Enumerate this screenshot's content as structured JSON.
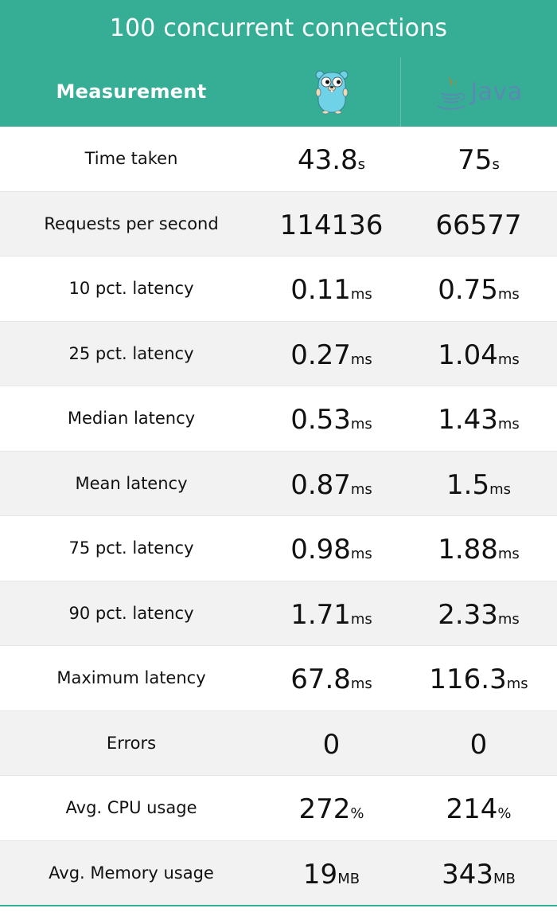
{
  "title": "100 concurrent connections",
  "header": {
    "measurement_label": "Measurement",
    "go_logo": "gopher-logo",
    "java_logo": "java-logo",
    "java_word": "Java"
  },
  "colors": {
    "header_bg": "#36ae95",
    "row_alt_bg": "#f2f2f2",
    "java_blue": "#5a8ab2",
    "java_orange": "#e76f00"
  },
  "rows": [
    {
      "label": "Time taken",
      "go": "43.8",
      "go_unit": "s",
      "java": "75",
      "java_unit": "s"
    },
    {
      "label": "Requests per second",
      "go": "114136",
      "go_unit": "",
      "java": "66577",
      "java_unit": ""
    },
    {
      "label": "10 pct. latency",
      "go": "0.11",
      "go_unit": "ms",
      "java": "0.75",
      "java_unit": "ms"
    },
    {
      "label": "25 pct. latency",
      "go": "0.27",
      "go_unit": "ms",
      "java": "1.04",
      "java_unit": "ms"
    },
    {
      "label": "Median latency",
      "go": "0.53",
      "go_unit": "ms",
      "java": "1.43",
      "java_unit": "ms"
    },
    {
      "label": "Mean latency",
      "go": "0.87",
      "go_unit": "ms",
      "java": "1.5",
      "java_unit": "ms"
    },
    {
      "label": "75 pct. latency",
      "go": "0.98",
      "go_unit": "ms",
      "java": "1.88",
      "java_unit": "ms"
    },
    {
      "label": "90 pct. latency",
      "go": "1.71",
      "go_unit": "ms",
      "java": "2.33",
      "java_unit": "ms"
    },
    {
      "label": "Maximum latency",
      "go": "67.8",
      "go_unit": "ms",
      "java": "116.3",
      "java_unit": "ms"
    },
    {
      "label": "Errors",
      "go": "0",
      "go_unit": "",
      "java": "0",
      "java_unit": ""
    },
    {
      "label": "Avg. CPU usage",
      "go": "272",
      "go_unit": "%",
      "java": "214",
      "java_unit": "%"
    },
    {
      "label": "Avg. Memory usage",
      "go": "19",
      "go_unit": "MB",
      "java": "343",
      "java_unit": "MB"
    }
  ]
}
